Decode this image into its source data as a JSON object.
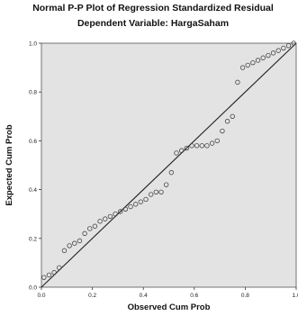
{
  "chart_data": {
    "type": "scatter",
    "title": "Normal P-P Plot of Regression Standardized Residual",
    "subtitle": "Dependent Variable: HargaSaham",
    "xlabel": "Observed Cum Prob",
    "ylabel": "Expected Cum Prob",
    "xlim": [
      0,
      1
    ],
    "ylim": [
      0,
      1
    ],
    "xticks": [
      "0.0",
      "0.2",
      "0.4",
      "0.6",
      "0.8",
      "1.0"
    ],
    "yticks": [
      "0.0",
      "0.2",
      "0.4",
      "0.6",
      "0.8",
      "1.0"
    ],
    "grid": false,
    "reference_line": {
      "from": [
        0,
        0
      ],
      "to": [
        1,
        1
      ]
    },
    "colors": {
      "plot_background": "#e3e3e3",
      "points": "#444444",
      "line": "#222222"
    },
    "series": [
      {
        "x": [
          0.01,
          0.03,
          0.05,
          0.07,
          0.09,
          0.11,
          0.13,
          0.15,
          0.17,
          0.19,
          0.21,
          0.23,
          0.25,
          0.27,
          0.29,
          0.31,
          0.33,
          0.35,
          0.37,
          0.39,
          0.41,
          0.43,
          0.45,
          0.47,
          0.49,
          0.51,
          0.53,
          0.55,
          0.57,
          0.59,
          0.61,
          0.63,
          0.65,
          0.67,
          0.69,
          0.71,
          0.73,
          0.75,
          0.77,
          0.79,
          0.81,
          0.83,
          0.85,
          0.87,
          0.89,
          0.91,
          0.93,
          0.95,
          0.97,
          0.99
        ],
        "y": [
          0.04,
          0.05,
          0.06,
          0.08,
          0.15,
          0.17,
          0.18,
          0.19,
          0.22,
          0.24,
          0.25,
          0.27,
          0.28,
          0.29,
          0.3,
          0.31,
          0.32,
          0.33,
          0.34,
          0.35,
          0.36,
          0.38,
          0.39,
          0.39,
          0.42,
          0.47,
          0.55,
          0.56,
          0.57,
          0.58,
          0.58,
          0.58,
          0.58,
          0.59,
          0.6,
          0.64,
          0.68,
          0.7,
          0.84,
          0.9,
          0.91,
          0.92,
          0.93,
          0.94,
          0.95,
          0.96,
          0.97,
          0.98,
          0.99,
          1.0
        ]
      }
    ]
  }
}
